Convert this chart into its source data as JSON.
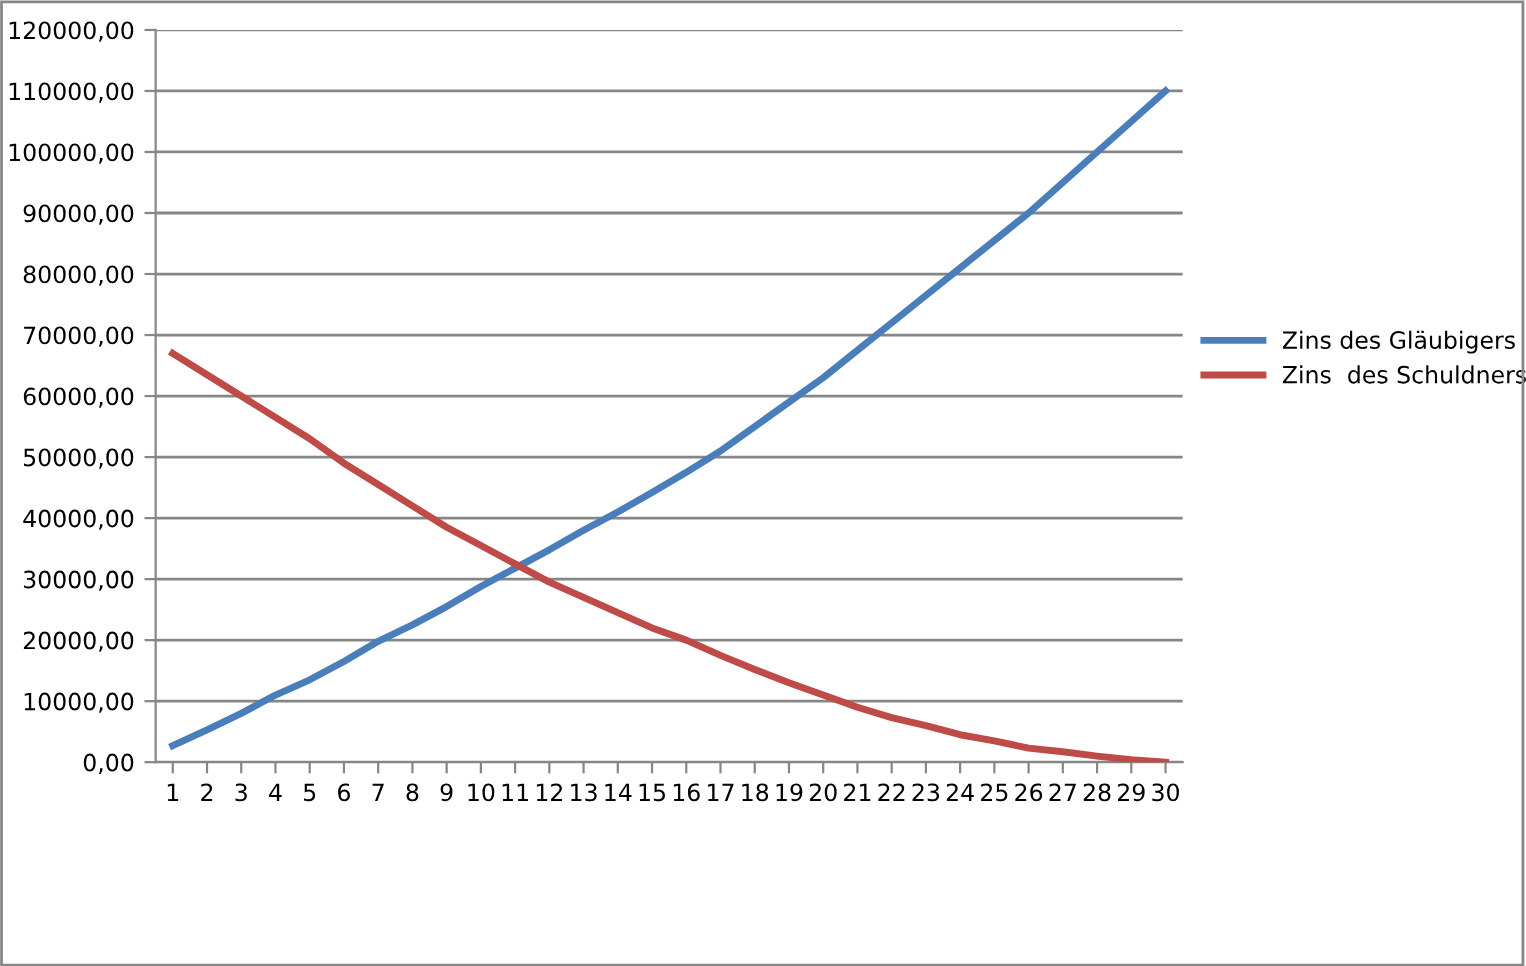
{
  "chart_data": {
    "type": "line",
    "categories": [
      "1",
      "2",
      "3",
      "4",
      "5",
      "6",
      "7",
      "8",
      "9",
      "10",
      "11",
      "12",
      "13",
      "14",
      "15",
      "16",
      "17",
      "18",
      "19",
      "20",
      "21",
      "22",
      "23",
      "24",
      "25",
      "26",
      "27",
      "28",
      "29",
      "30"
    ],
    "series": [
      {
        "name": "Zins des Gläubigers",
        "color": "#4a7ebb",
        "values": [
          2700,
          5300,
          8000,
          11000,
          13500,
          16500,
          19800,
          22500,
          25500,
          28800,
          31800,
          34800,
          38000,
          41000,
          44200,
          47500,
          51000,
          55000,
          59000,
          63000,
          67500,
          72000,
          76500,
          81000,
          85500,
          90000,
          95000,
          100000,
          105000,
          110000
        ]
      },
      {
        "name": "Zins  des Schuldners",
        "color": "#be4b48",
        "values": [
          67000,
          63500,
          60000,
          56500,
          53000,
          49000,
          45500,
          42000,
          38500,
          35500,
          32500,
          29500,
          27000,
          24500,
          22000,
          20000,
          17500,
          15200,
          13000,
          11000,
          9000,
          7300,
          6000,
          4500,
          3500,
          2300,
          1700,
          1000,
          400,
          0
        ]
      }
    ],
    "ylim": [
      0,
      120000
    ],
    "yticks": [
      {
        "value": 0,
        "label": "0,00"
      },
      {
        "value": 10000,
        "label": "10000,00"
      },
      {
        "value": 20000,
        "label": "20000,00"
      },
      {
        "value": 30000,
        "label": "30000,00"
      },
      {
        "value": 40000,
        "label": "40000,00"
      },
      {
        "value": 50000,
        "label": "50000,00"
      },
      {
        "value": 60000,
        "label": "60000,00"
      },
      {
        "value": 70000,
        "label": "70000,00"
      },
      {
        "value": 80000,
        "label": "80000,00"
      },
      {
        "value": 90000,
        "label": "90000,00"
      },
      {
        "value": 100000,
        "label": "100000,00"
      },
      {
        "value": 110000,
        "label": "110000,00"
      },
      {
        "value": 120000,
        "label": "120000,00"
      }
    ],
    "grid": "y",
    "legend": "right",
    "marker": "none",
    "line_style": "solid"
  }
}
